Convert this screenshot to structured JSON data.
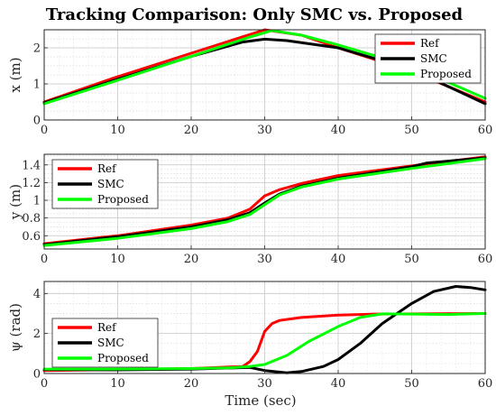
{
  "title": "Tracking Comparison: Only SMC vs. Proposed",
  "xlabel": "Time (sec)",
  "colors": {
    "Ref": "#ff0000",
    "SMC": "#000000",
    "Proposed": "#00ff00"
  },
  "chart_data": [
    {
      "type": "line",
      "ylabel": "x (m)",
      "xlim": [
        0,
        60
      ],
      "ylim": [
        0,
        2.5
      ],
      "xticks": [
        0,
        10,
        20,
        30,
        40,
        50,
        60
      ],
      "yticks": [
        0,
        1,
        2
      ],
      "grid": true,
      "legend_position": "top-right",
      "series": [
        {
          "name": "Ref",
          "x": [
            0,
            10,
            20,
            30,
            35,
            40,
            50,
            60
          ],
          "y": [
            0.5,
            1.2,
            1.85,
            2.5,
            2.35,
            2.0,
            1.35,
            0.5
          ]
        },
        {
          "name": "SMC",
          "x": [
            0,
            10,
            20,
            27,
            30,
            33,
            40,
            50,
            60
          ],
          "y": [
            0.48,
            1.13,
            1.76,
            2.16,
            2.24,
            2.2,
            2.0,
            1.4,
            0.45
          ]
        },
        {
          "name": "Proposed",
          "x": [
            0,
            10,
            20,
            28,
            31,
            35,
            40,
            50,
            60
          ],
          "y": [
            0.45,
            1.1,
            1.76,
            2.3,
            2.48,
            2.35,
            2.08,
            1.48,
            0.6
          ]
        }
      ]
    },
    {
      "type": "line",
      "ylabel": "y (m)",
      "xlim": [
        0,
        60
      ],
      "ylim": [
        0.45,
        1.52
      ],
      "xticks": [
        0,
        10,
        20,
        30,
        40,
        50,
        60
      ],
      "yticks": [
        0.6,
        0.8,
        1,
        1.2,
        1.4
      ],
      "grid": true,
      "legend_position": "top-left",
      "series": [
        {
          "name": "Ref",
          "x": [
            0,
            10,
            20,
            25,
            28,
            30,
            32,
            35,
            40,
            50,
            60
          ],
          "y": [
            0.51,
            0.6,
            0.72,
            0.8,
            0.9,
            1.05,
            1.12,
            1.19,
            1.28,
            1.39,
            1.49
          ]
        },
        {
          "name": "SMC",
          "x": [
            0,
            10,
            20,
            25,
            28,
            30,
            32,
            35,
            40,
            50,
            52,
            60
          ],
          "y": [
            0.5,
            0.59,
            0.7,
            0.78,
            0.86,
            0.97,
            1.07,
            1.16,
            1.25,
            1.38,
            1.42,
            1.48
          ]
        },
        {
          "name": "Proposed",
          "x": [
            0,
            10,
            20,
            25,
            28,
            30,
            32,
            35,
            40,
            50,
            60
          ],
          "y": [
            0.49,
            0.57,
            0.68,
            0.76,
            0.84,
            0.95,
            1.06,
            1.15,
            1.24,
            1.36,
            1.47
          ]
        }
      ]
    },
    {
      "type": "line",
      "ylabel": "ψ (rad)",
      "xlim": [
        0,
        60
      ],
      "ylim": [
        0,
        4.6
      ],
      "xticks": [
        0,
        10,
        20,
        30,
        40,
        50,
        60
      ],
      "yticks": [
        0,
        2,
        4
      ],
      "grid": true,
      "legend_position": "bottom-left",
      "series": [
        {
          "name": "Ref",
          "x": [
            0,
            10,
            20,
            27,
            28,
            29,
            30,
            31,
            32,
            35,
            40,
            45,
            60
          ],
          "y": [
            0.15,
            0.2,
            0.25,
            0.35,
            0.6,
            1.1,
            2.1,
            2.5,
            2.65,
            2.8,
            2.92,
            2.97,
            3.0
          ]
        },
        {
          "name": "SMC",
          "x": [
            0,
            10,
            20,
            28,
            30,
            33,
            35,
            38,
            40,
            43,
            46,
            50,
            53,
            56,
            58,
            60
          ],
          "y": [
            0.2,
            0.18,
            0.22,
            0.3,
            0.15,
            0.03,
            0.1,
            0.35,
            0.7,
            1.5,
            2.5,
            3.5,
            4.1,
            4.35,
            4.3,
            4.18
          ]
        },
        {
          "name": "Proposed",
          "x": [
            0,
            10,
            20,
            25,
            28,
            30,
            33,
            36,
            40,
            43,
            46,
            50,
            55,
            60
          ],
          "y": [
            0.22,
            0.22,
            0.25,
            0.28,
            0.35,
            0.45,
            0.9,
            1.6,
            2.35,
            2.8,
            2.98,
            2.97,
            2.95,
            3.0
          ]
        }
      ]
    }
  ]
}
